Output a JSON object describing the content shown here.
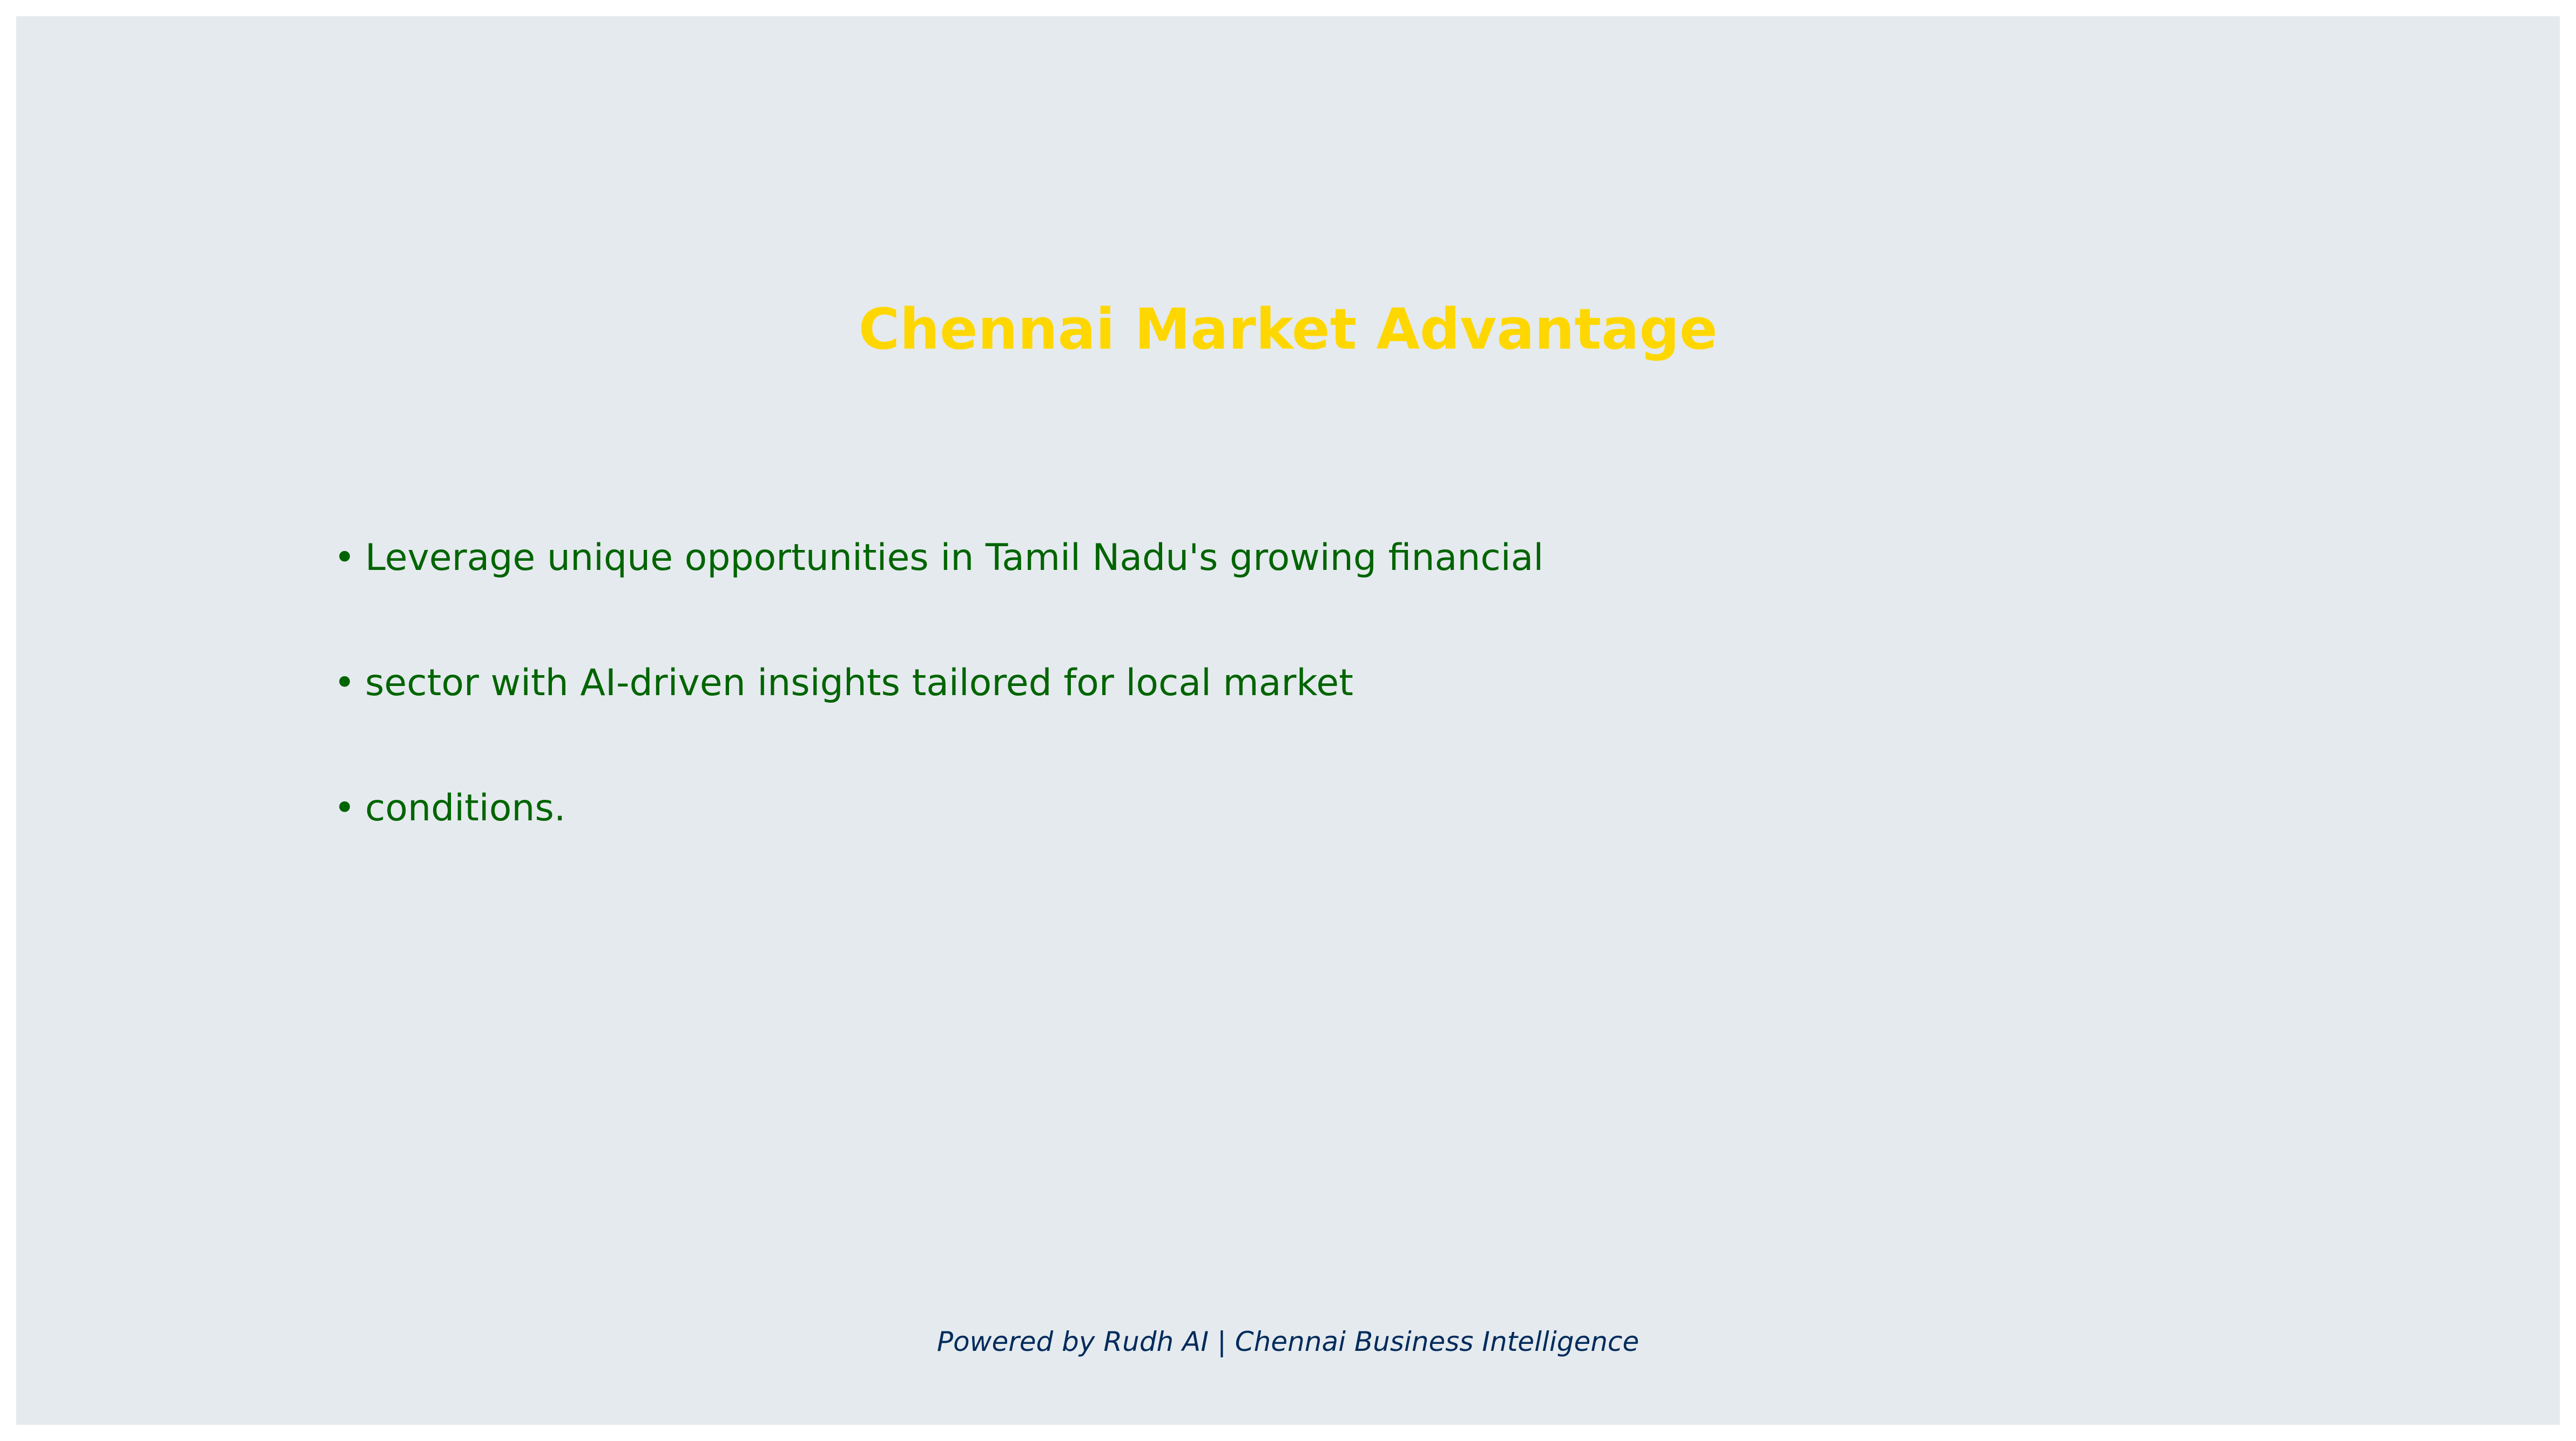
{
  "slide": {
    "title": "Chennai Market Advantage",
    "bullets": [
      "Leverage unique opportunities in Tamil Nadu's growing financial",
      "sector with AI-driven insights tailored for local market",
      "conditions."
    ],
    "bullet_marker": "•",
    "footer": "Powered by Rudh AI | Chennai Business Intelligence"
  },
  "colors": {
    "background": "#e5eaee",
    "title": "#ffd700",
    "bullet_text": "#006400",
    "footer_text": "#002b5c"
  }
}
